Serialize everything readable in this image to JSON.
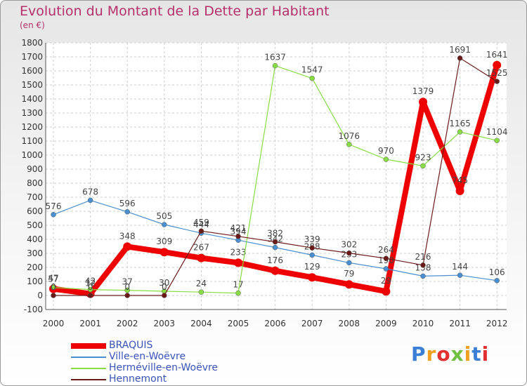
{
  "title": "Evolution du Montant de la Dette par Habitant",
  "unit": "(en €)",
  "brand": "Proxiti",
  "chart_data": {
    "type": "line",
    "x": [
      2000,
      2001,
      2002,
      2003,
      2004,
      2005,
      2006,
      2007,
      2008,
      2009,
      2010,
      2011,
      2012
    ],
    "ylim": [
      -100,
      1800
    ],
    "yticks": [
      -100,
      0,
      100,
      200,
      300,
      400,
      500,
      600,
      700,
      800,
      900,
      1000,
      1100,
      1200,
      1300,
      1400,
      1500,
      1600,
      1700,
      1800
    ],
    "grid": true,
    "legend_position": "bottom-left",
    "series": [
      {
        "name": "BRAQUIS",
        "color": "#ee0000",
        "values": [
          47,
          12,
          348,
          309,
          267,
          233,
          176,
          129,
          79,
          29,
          1379,
          745,
          1641
        ]
      },
      {
        "name": "Ville-en-Woëvre",
        "color": "#4a8fcf",
        "values": [
          576,
          678,
          596,
          505,
          444,
          394,
          342,
          288,
          233,
          190,
          138,
          144,
          106
        ]
      },
      {
        "name": "Herméville-en-Woëvre",
        "color": "#88dd44",
        "values": [
          57,
          42,
          37,
          30,
          24,
          17,
          1637,
          1547,
          1076,
          970,
          923,
          1165,
          1104
        ]
      },
      {
        "name": "Hennemont",
        "color": "#6b1a1a",
        "values": [
          0,
          0,
          0,
          0,
          459,
          421,
          382,
          339,
          302,
          264,
          216,
          1691,
          1525
        ]
      }
    ]
  }
}
